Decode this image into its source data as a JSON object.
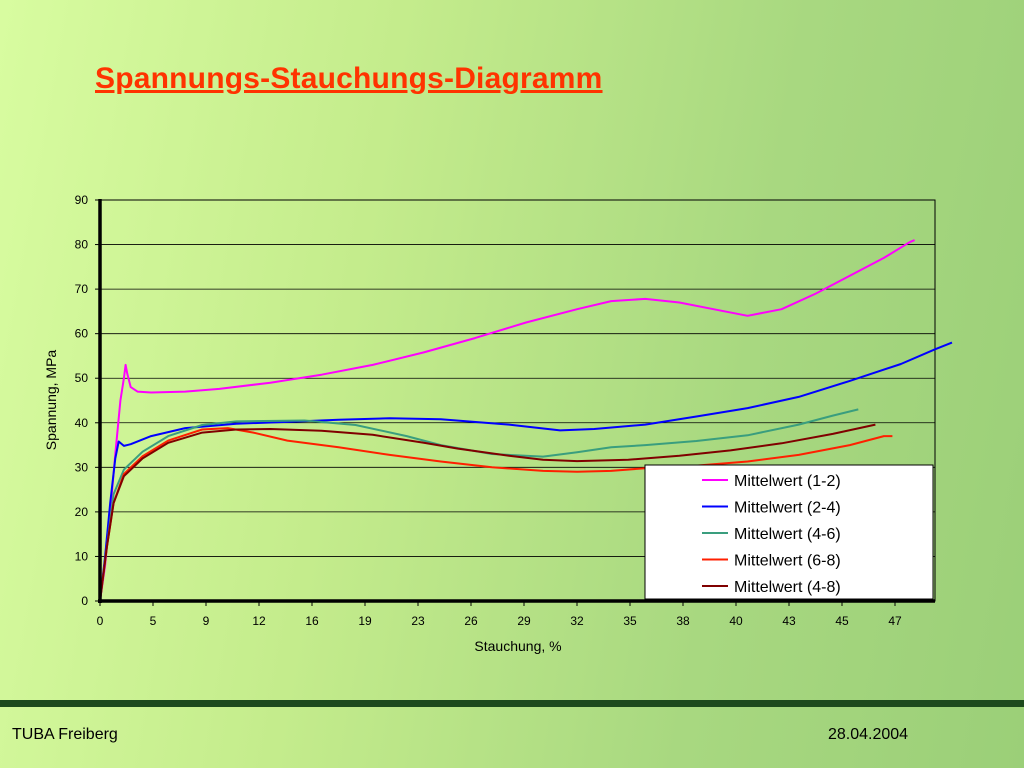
{
  "slide": {
    "title": "Spannungs-Stauchungs-Diagramm",
    "footer_left": "TUBA Freiberg",
    "footer_right": "28.04.2004"
  },
  "colors": {
    "title": "#ff3300",
    "divider": "#1d4a1d"
  },
  "chart_data": {
    "type": "line",
    "title": "",
    "xlabel": "Stauchung, %",
    "ylabel": "Spannung, MPa",
    "xlim": [
      0,
      49
    ],
    "ylim": [
      0,
      90
    ],
    "x_tick_labels": [
      "0",
      "5",
      "9",
      "12",
      "16",
      "19",
      "23",
      "26",
      "29",
      "32",
      "35",
      "38",
      "40",
      "43",
      "45",
      "47"
    ],
    "y_ticks": [
      0,
      10,
      20,
      30,
      40,
      50,
      60,
      70,
      80,
      90
    ],
    "grid": "horizontal",
    "legend_position": "bottom-right",
    "series": [
      {
        "name": "Mittelwert (1-2)",
        "color": "#ff00ff",
        "points": [
          [
            0,
            0
          ],
          [
            0.3,
            8
          ],
          [
            0.6,
            20
          ],
          [
            0.9,
            33
          ],
          [
            1.2,
            45
          ],
          [
            1.4,
            50
          ],
          [
            1.5,
            53
          ],
          [
            1.6,
            51
          ],
          [
            1.8,
            48
          ],
          [
            2.2,
            47
          ],
          [
            3,
            46.8
          ],
          [
            5,
            47
          ],
          [
            7,
            47.6
          ],
          [
            10,
            49
          ],
          [
            13,
            50.8
          ],
          [
            16,
            53
          ],
          [
            19,
            55.8
          ],
          [
            22,
            59
          ],
          [
            25,
            62.5
          ],
          [
            28,
            65.5
          ],
          [
            30,
            67.3
          ],
          [
            32,
            67.8
          ],
          [
            34,
            67
          ],
          [
            36,
            65.5
          ],
          [
            38,
            64
          ],
          [
            40,
            65.5
          ],
          [
            42,
            69
          ],
          [
            44,
            73
          ],
          [
            46,
            77
          ],
          [
            47.5,
            80.5
          ],
          [
            47.8,
            81
          ]
        ]
      },
      {
        "name": "Mittelwert (2-4)",
        "color": "#0000ff",
        "points": [
          [
            0,
            0
          ],
          [
            0.3,
            10
          ],
          [
            0.6,
            22
          ],
          [
            0.9,
            32
          ],
          [
            1.1,
            35.8
          ],
          [
            1.4,
            34.8
          ],
          [
            1.8,
            35.2
          ],
          [
            3,
            37
          ],
          [
            5,
            38.8
          ],
          [
            8,
            39.8
          ],
          [
            11,
            40.2
          ],
          [
            14,
            40.7
          ],
          [
            17,
            41
          ],
          [
            20,
            40.8
          ],
          [
            24,
            39.6
          ],
          [
            27,
            38.3
          ],
          [
            29,
            38.6
          ],
          [
            32,
            39.6
          ],
          [
            35,
            41.4
          ],
          [
            38,
            43.3
          ],
          [
            41,
            45.8
          ],
          [
            44,
            49.4
          ],
          [
            47,
            53.2
          ],
          [
            49,
            56.5
          ],
          [
            50,
            58
          ]
        ]
      },
      {
        "name": "Mittelwert (4-6)",
        "color": "#3a9e7e",
        "points": [
          [
            0,
            0
          ],
          [
            0.4,
            12
          ],
          [
            0.8,
            24
          ],
          [
            1.4,
            29.5
          ],
          [
            2.5,
            33.5
          ],
          [
            4,
            37
          ],
          [
            6,
            39.5
          ],
          [
            8,
            40.3
          ],
          [
            12,
            40.5
          ],
          [
            15,
            39.5
          ],
          [
            18,
            37
          ],
          [
            20,
            35
          ],
          [
            23,
            33
          ],
          [
            26,
            32.4
          ],
          [
            28,
            33.4
          ],
          [
            30,
            34.5
          ],
          [
            32,
            35
          ],
          [
            35,
            35.9
          ],
          [
            38,
            37.2
          ],
          [
            41,
            39.6
          ],
          [
            43,
            41.6
          ],
          [
            44.5,
            43
          ]
        ]
      },
      {
        "name": "Mittelwert (6-8)",
        "color": "#ff1f00",
        "points": [
          [
            0,
            0
          ],
          [
            0.4,
            12
          ],
          [
            0.8,
            22
          ],
          [
            1.4,
            28.5
          ],
          [
            2.5,
            32.5
          ],
          [
            4,
            36
          ],
          [
            6,
            38.5
          ],
          [
            7.5,
            38.8
          ],
          [
            9,
            37.8
          ],
          [
            11,
            36
          ],
          [
            14,
            34.5
          ],
          [
            17,
            32.8
          ],
          [
            20,
            31.3
          ],
          [
            23,
            30
          ],
          [
            26,
            29.2
          ],
          [
            28,
            29
          ],
          [
            30,
            29.2
          ],
          [
            32,
            29.8
          ],
          [
            35,
            30.4
          ],
          [
            38,
            31.3
          ],
          [
            41,
            32.8
          ],
          [
            44,
            35
          ],
          [
            46,
            37
          ],
          [
            46.5,
            37
          ]
        ]
      },
      {
        "name": "Mittelwert (4-8)",
        "color": "#800000",
        "points": [
          [
            0,
            0
          ],
          [
            0.4,
            12
          ],
          [
            0.8,
            22
          ],
          [
            1.4,
            28
          ],
          [
            2.5,
            32
          ],
          [
            4,
            35.5
          ],
          [
            6,
            37.8
          ],
          [
            8,
            38.5
          ],
          [
            10,
            38.6
          ],
          [
            13,
            38.2
          ],
          [
            16,
            37.3
          ],
          [
            19,
            35.5
          ],
          [
            21,
            34.2
          ],
          [
            24,
            32.6
          ],
          [
            26,
            31.7
          ],
          [
            28,
            31.4
          ],
          [
            31,
            31.7
          ],
          [
            34,
            32.6
          ],
          [
            37,
            33.8
          ],
          [
            40,
            35.4
          ],
          [
            43,
            37.5
          ],
          [
            45.5,
            39.6
          ]
        ]
      }
    ]
  }
}
